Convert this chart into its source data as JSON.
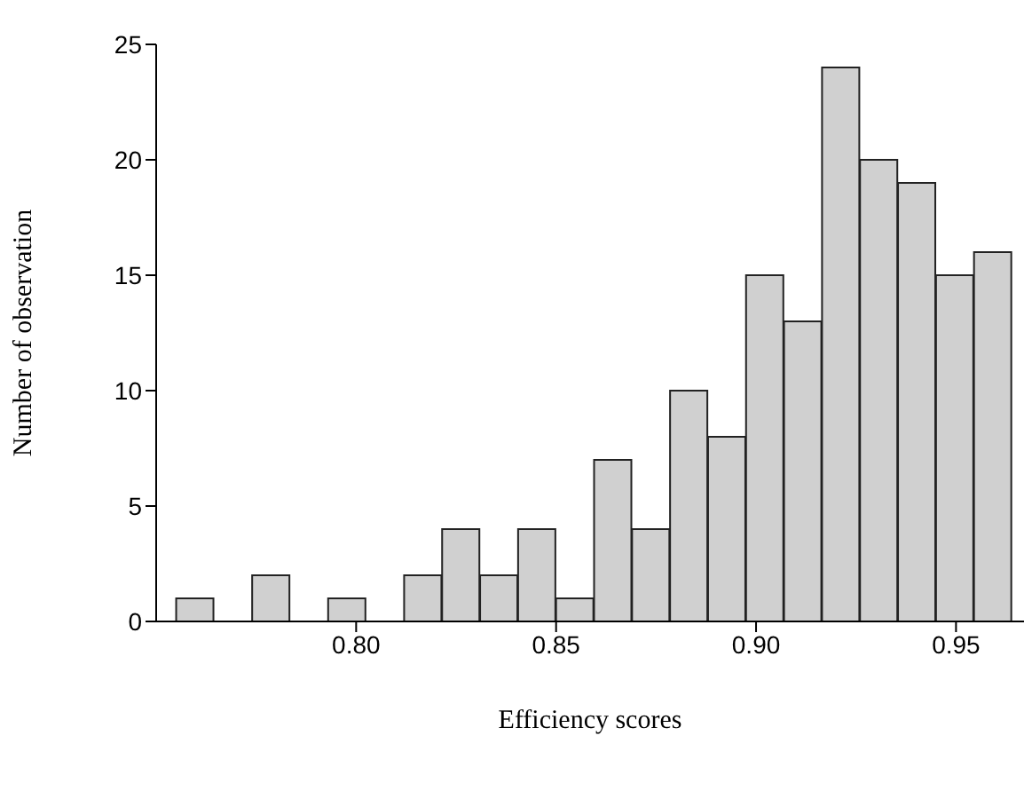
{
  "chart_data": {
    "type": "histogram",
    "xlabel": "Efficiency scores",
    "ylabel": "Number of observation",
    "bins": [
      0.755,
      0.7645,
      0.774,
      0.7835,
      0.793,
      0.8025,
      0.812,
      0.8215,
      0.831,
      0.8405,
      0.85,
      0.8595,
      0.869,
      0.8785,
      0.888,
      0.8975,
      0.907,
      0.9165,
      0.926,
      0.9355,
      0.945,
      0.9545,
      0.964
    ],
    "values": [
      1,
      0,
      2,
      0,
      1,
      0,
      2,
      4,
      2,
      4,
      1,
      7,
      4,
      10,
      8,
      15,
      13,
      24,
      20,
      19,
      15,
      16
    ],
    "color": "#d0d0d0",
    "xlim": [
      0.75,
      0.967
    ],
    "xticks": [
      {
        "value": 0.8,
        "label": "0.80"
      },
      {
        "value": 0.85,
        "label": "0.85"
      },
      {
        "value": 0.9,
        "label": "0.90"
      },
      {
        "value": 0.95,
        "label": "0.95"
      }
    ],
    "ylim": [
      0,
      25
    ],
    "yticks": [
      0,
      5,
      10,
      15,
      20,
      25
    ],
    "grid": false
  }
}
